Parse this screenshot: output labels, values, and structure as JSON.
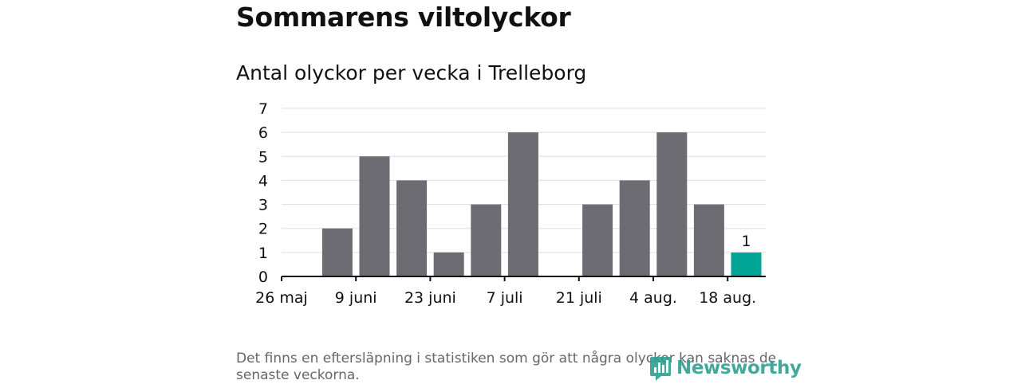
{
  "header": {
    "title": "Sommarens viltolyckor",
    "subtitle": "Antal olyckor per vecka i Trelleborg"
  },
  "footnote": "Det finns en eftersläpning i statistiken som gör att några olyckor kan saknas de senaste veckorna.",
  "logo": {
    "text": "Newsworthy",
    "icon": "newsworthy-logo-icon",
    "color": "#2a9d8f"
  },
  "chart_data": {
    "type": "bar",
    "title": "Antal olyckor per vecka i Trelleborg",
    "xlabel": "",
    "ylabel": "",
    "ylim": [
      0,
      7
    ],
    "yticks": [
      "0",
      "1",
      "2",
      "3",
      "4",
      "5",
      "6",
      "7"
    ],
    "grid": true,
    "xtick_labels": [
      "26 maj",
      "9 juni",
      "23 juni",
      "7 juli",
      "21 juli",
      "4 aug.",
      "18 aug."
    ],
    "weeks": 13,
    "values": [
      null,
      2,
      5,
      4,
      1,
      3,
      6,
      null,
      3,
      4,
      6,
      3,
      1
    ],
    "highlight_index": 12,
    "highlight_label": "1",
    "colors": {
      "bar": "#6d6c72",
      "highlight": "#00a596",
      "grid": "#dddddd",
      "axis": "#111111"
    }
  }
}
